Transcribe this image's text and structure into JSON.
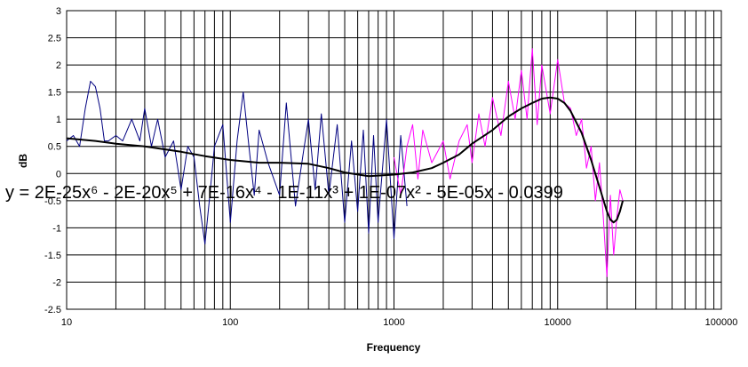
{
  "chart_data": {
    "type": "line",
    "title": "",
    "xlabel": "Frequency",
    "ylabel": "dB",
    "x_scale": "log",
    "xlim": [
      10,
      100000
    ],
    "ylim": [
      -2.5,
      3
    ],
    "x_ticks": [
      "10",
      "100",
      "1000",
      "10000",
      "100000"
    ],
    "y_ticks": [
      "3",
      "2.5",
      "2",
      "1.5",
      "1",
      "0.5",
      "0",
      "-0.5",
      "-1",
      "-1.5",
      "-2",
      "-2.5"
    ],
    "grid": true,
    "legend": "none",
    "trendline_equation": "y = 2E-25x⁶ - 2E-20x⁵ + 7E-16x⁴ - 1E-11x³ + 1E-07x² - 5E-05x - 0.0399",
    "series": [
      {
        "color": "#000080",
        "x": [
          10,
          11,
          12,
          13,
          14,
          15,
          16,
          17,
          18,
          20,
          22,
          25,
          28,
          30,
          33,
          36,
          40,
          45,
          50,
          55,
          60,
          65,
          70,
          75,
          80,
          90,
          100,
          110,
          120,
          130,
          140,
          150,
          170,
          200,
          220,
          250,
          280,
          300,
          330,
          360,
          400,
          450,
          500,
          550,
          600,
          650,
          700,
          750,
          800,
          900,
          1000,
          1100,
          1200
        ],
        "y": [
          0.6,
          0.7,
          0.5,
          1.2,
          1.7,
          1.6,
          1.2,
          0.6,
          0.6,
          0.7,
          0.6,
          1.0,
          0.6,
          1.2,
          0.5,
          1.0,
          0.3,
          0.6,
          -0.3,
          0.5,
          0.3,
          -0.6,
          -1.3,
          -0.4,
          0.5,
          0.9,
          -0.9,
          0.6,
          1.5,
          0.5,
          -0.4,
          0.8,
          0.2,
          -0.4,
          1.3,
          -0.6,
          0.4,
          1.0,
          -0.3,
          1.1,
          -0.4,
          0.9,
          -0.9,
          0.6,
          -0.7,
          0.8,
          -1.1,
          0.7,
          -0.9,
          1.0,
          -1.2,
          0.7,
          -0.6
        ]
      },
      {
        "color": "#ff00ff",
        "x": [
          1000,
          1100,
          1200,
          1300,
          1400,
          1500,
          1700,
          2000,
          2200,
          2500,
          2800,
          3000,
          3300,
          3600,
          4000,
          4500,
          5000,
          5500,
          6000,
          6500,
          7000,
          7500,
          8000,
          9000,
          10000,
          11000,
          12000,
          13000,
          14000,
          15000,
          16000,
          17000,
          18000,
          19000,
          20000,
          21000,
          22000,
          23000,
          24000,
          25000
        ],
        "y": [
          0.3,
          -0.4,
          0.5,
          0.9,
          -0.1,
          0.8,
          0.2,
          0.6,
          -0.1,
          0.6,
          0.9,
          0.2,
          1.1,
          0.5,
          1.4,
          0.7,
          1.7,
          1.0,
          1.9,
          1.0,
          2.3,
          0.9,
          2.0,
          1.1,
          2.1,
          1.3,
          1.2,
          0.7,
          1.0,
          0.1,
          0.5,
          -0.5,
          0.2,
          -0.8,
          -1.9,
          -0.4,
          -1.5,
          -0.8,
          -0.3,
          -0.5
        ]
      },
      {
        "color": "#000000",
        "x": [
          10,
          15,
          20,
          30,
          50,
          70,
          100,
          150,
          200,
          300,
          400,
          500,
          700,
          1000,
          1300,
          1700,
          2000,
          2500,
          3000,
          4000,
          5000,
          6000,
          7000,
          8000,
          9000,
          10000,
          11000,
          12000,
          14000,
          16000,
          18000,
          20000,
          21000,
          22000,
          23000,
          24000,
          25000
        ],
        "y": [
          0.65,
          0.6,
          0.55,
          0.5,
          0.4,
          0.32,
          0.25,
          0.2,
          0.2,
          0.18,
          0.1,
          0.02,
          -0.05,
          -0.02,
          0.02,
          0.1,
          0.2,
          0.35,
          0.55,
          0.8,
          1.05,
          1.2,
          1.3,
          1.38,
          1.4,
          1.38,
          1.3,
          1.15,
          0.75,
          0.25,
          -0.25,
          -0.7,
          -0.85,
          -0.9,
          -0.85,
          -0.7,
          -0.5
        ]
      }
    ]
  }
}
